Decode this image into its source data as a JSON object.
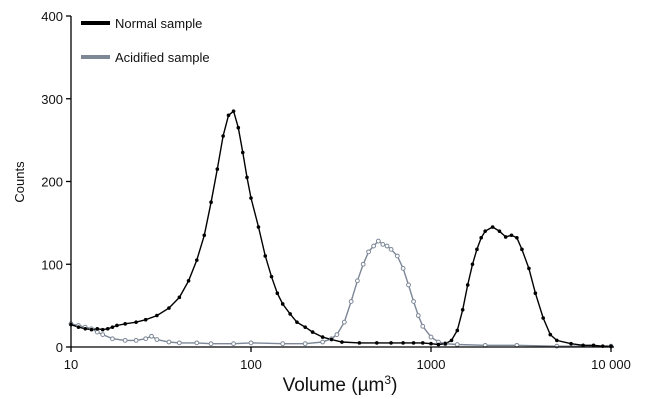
{
  "chart_data": {
    "type": "line",
    "xlabel": "Volume (µm",
    "xlabel_sup": "3",
    "xlabel_close": ")",
    "ylabel": "Counts",
    "x_scale": "log",
    "xlim": [
      10,
      10000
    ],
    "ylim": [
      0,
      400
    ],
    "x_ticks": [
      10,
      100,
      1000,
      10000
    ],
    "x_tick_labels": [
      "10",
      "100",
      "1000",
      "10 000"
    ],
    "y_ticks": [
      0,
      100,
      200,
      300,
      400
    ],
    "y_tick_labels": [
      "0",
      "100",
      "200",
      "300",
      "400"
    ],
    "grid": false,
    "legend_position": "top-left",
    "series": [
      {
        "name": "Normal sample",
        "color": "#000000",
        "marker": "small-dot",
        "points": [
          [
            10,
            27
          ],
          [
            11,
            24
          ],
          [
            12,
            22
          ],
          [
            13,
            21
          ],
          [
            14,
            22
          ],
          [
            15,
            21
          ],
          [
            16,
            22
          ],
          [
            17,
            24
          ],
          [
            18,
            26
          ],
          [
            20,
            28
          ],
          [
            23,
            30
          ],
          [
            26,
            33
          ],
          [
            30,
            38
          ],
          [
            35,
            47
          ],
          [
            40,
            60
          ],
          [
            45,
            80
          ],
          [
            50,
            105
          ],
          [
            55,
            135
          ],
          [
            60,
            175
          ],
          [
            65,
            215
          ],
          [
            70,
            255
          ],
          [
            75,
            280
          ],
          [
            80,
            285
          ],
          [
            85,
            265
          ],
          [
            90,
            235
          ],
          [
            95,
            205
          ],
          [
            100,
            180
          ],
          [
            110,
            145
          ],
          [
            120,
            110
          ],
          [
            130,
            85
          ],
          [
            140,
            65
          ],
          [
            150,
            52
          ],
          [
            165,
            40
          ],
          [
            180,
            30
          ],
          [
            200,
            24
          ],
          [
            220,
            18
          ],
          [
            250,
            12
          ],
          [
            280,
            9
          ],
          [
            320,
            6
          ],
          [
            400,
            5
          ],
          [
            500,
            5
          ],
          [
            600,
            5
          ],
          [
            700,
            5
          ],
          [
            800,
            5
          ],
          [
            900,
            5
          ],
          [
            1000,
            4
          ],
          [
            1100,
            3
          ],
          [
            1200,
            4
          ],
          [
            1300,
            8
          ],
          [
            1400,
            20
          ],
          [
            1500,
            45
          ],
          [
            1600,
            75
          ],
          [
            1700,
            100
          ],
          [
            1800,
            118
          ],
          [
            1900,
            132
          ],
          [
            2000,
            140
          ],
          [
            2200,
            145
          ],
          [
            2400,
            140
          ],
          [
            2600,
            133
          ],
          [
            2800,
            135
          ],
          [
            3000,
            132
          ],
          [
            3200,
            118
          ],
          [
            3500,
            95
          ],
          [
            3800,
            65
          ],
          [
            4200,
            35
          ],
          [
            4600,
            15
          ],
          [
            5000,
            8
          ],
          [
            6000,
            4
          ],
          [
            7000,
            2
          ],
          [
            8000,
            2
          ],
          [
            9000,
            1
          ],
          [
            10000,
            1
          ]
        ]
      },
      {
        "name": "Acidified sample",
        "color": "#7d8796",
        "marker": "small-circle",
        "points": [
          [
            10,
            28
          ],
          [
            11,
            26
          ],
          [
            12,
            24
          ],
          [
            13,
            22
          ],
          [
            14,
            18
          ],
          [
            15,
            15
          ],
          [
            17,
            10
          ],
          [
            20,
            8
          ],
          [
            23,
            8
          ],
          [
            26,
            10
          ],
          [
            28,
            13
          ],
          [
            30,
            9
          ],
          [
            35,
            6
          ],
          [
            40,
            5
          ],
          [
            50,
            5
          ],
          [
            60,
            4
          ],
          [
            80,
            4
          ],
          [
            100,
            5
          ],
          [
            150,
            4
          ],
          [
            200,
            4
          ],
          [
            250,
            6
          ],
          [
            280,
            10
          ],
          [
            300,
            15
          ],
          [
            330,
            30
          ],
          [
            360,
            55
          ],
          [
            390,
            80
          ],
          [
            420,
            100
          ],
          [
            450,
            115
          ],
          [
            480,
            122
          ],
          [
            510,
            128
          ],
          [
            540,
            124
          ],
          [
            570,
            122
          ],
          [
            600,
            118
          ],
          [
            650,
            110
          ],
          [
            700,
            95
          ],
          [
            750,
            75
          ],
          [
            800,
            55
          ],
          [
            850,
            38
          ],
          [
            900,
            25
          ],
          [
            1000,
            12
          ],
          [
            1100,
            6
          ],
          [
            1200,
            4
          ],
          [
            1400,
            3
          ],
          [
            2000,
            2
          ],
          [
            3000,
            2
          ],
          [
            5000,
            1
          ],
          [
            10000,
            1
          ]
        ]
      }
    ]
  }
}
